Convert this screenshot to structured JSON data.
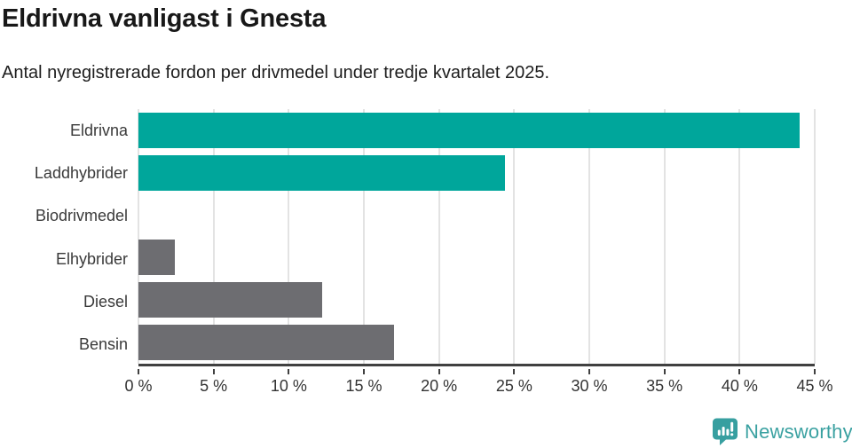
{
  "chart_data": {
    "type": "bar",
    "orientation": "horizontal",
    "title": "Eldrivna vanligast i Gnesta",
    "subtitle": "Antal nyregistrerade fordon per drivmedel under tredje kvartalet 2025.",
    "categories": [
      "Eldrivna",
      "Laddhybrider",
      "Biodrivmedel",
      "Elhybrider",
      "Diesel",
      "Bensin"
    ],
    "values": [
      44,
      24.4,
      0,
      2.4,
      12.2,
      17
    ],
    "unit": "%",
    "xlim": [
      0,
      45
    ],
    "x_ticks": [
      0,
      5,
      10,
      15,
      20,
      25,
      30,
      35,
      40,
      45
    ],
    "x_tick_labels": [
      "0 %",
      "5 %",
      "10 %",
      "15 %",
      "20 %",
      "25 %",
      "30 %",
      "35 %",
      "40 %",
      "45 %"
    ],
    "bar_colors": [
      "#00a69b",
      "#00a69b",
      "#6d6d71",
      "#6d6d71",
      "#6d6d71",
      "#6d6d71"
    ],
    "grid": "vertical",
    "legend": "none",
    "colors": {
      "highlight": "#00a69b",
      "default": "#6d6d71",
      "gridline": "#e3e3e3",
      "axis": "#404040",
      "tick_label": "#333333",
      "category_label": "#3a3a3a",
      "title": "#181818"
    }
  },
  "footer": {
    "brand": "Newsworthy",
    "brand_color": "#3aa1a1",
    "icon": "newsworthy-speech-bubble-bar-chart-icon",
    "icon_color": "#379fa0"
  }
}
